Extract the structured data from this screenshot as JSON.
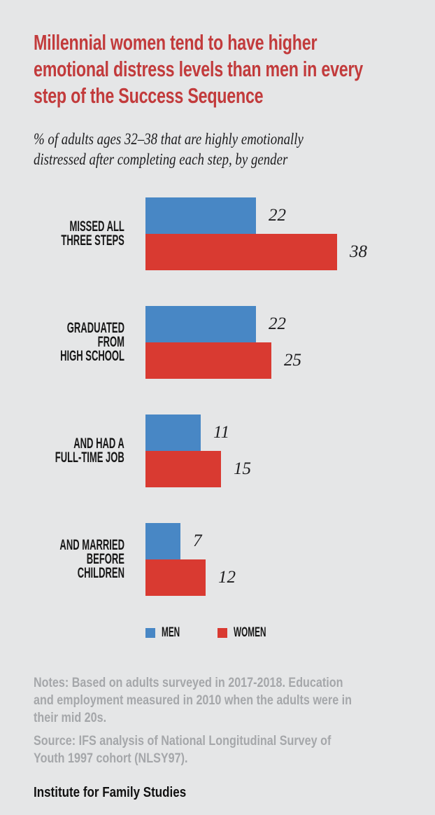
{
  "title": {
    "lines": [
      "Millennial women tend to have higher",
      "emotional distress levels than men in every",
      "step of the Success Sequence"
    ],
    "color": "#c23b3c"
  },
  "subtitle": {
    "lines": [
      "% of adults ages 32–38 that are highly emotionally",
      "distressed after completing each step, by gender"
    ]
  },
  "chart_data": {
    "type": "bar",
    "orientation": "horizontal",
    "title": "Millennial women tend to have higher emotional distress levels than men in every step of the Success Sequence",
    "subtitle": "% of adults ages 32–38 that are highly emotionally distressed after completing each step, by gender",
    "categories": [
      [
        "MISSED ALL",
        "THREE STEPS"
      ],
      [
        "GRADUATED FROM",
        "HIGH SCHOOL"
      ],
      [
        "AND HAD A",
        "FULL-TIME JOB"
      ],
      [
        "AND MARRIED",
        "BEFORE CHILDREN"
      ]
    ],
    "series": [
      {
        "name": "MEN",
        "color": "#4887c5",
        "values": [
          22,
          22,
          11,
          7
        ]
      },
      {
        "name": "WOMEN",
        "color": "#d93a31",
        "values": [
          38,
          25,
          15,
          12
        ]
      }
    ],
    "xlim": [
      0,
      40
    ],
    "grid": false,
    "data_labels": true,
    "legend_position": "bottom",
    "background_color": "#e5e6e7"
  },
  "notes": {
    "lines": [
      "Notes: Based on adults surveyed in 2017-2018. Education",
      "and employment measured in 2010 when the adults were in",
      "their mid 20s."
    ]
  },
  "source": {
    "lines": [
      "Source: IFS analysis of National Longitudinal Survey of",
      "Youth 1997 cohort (NLSY97)."
    ]
  },
  "footer": {
    "brand": "Institute for Family Studies"
  }
}
